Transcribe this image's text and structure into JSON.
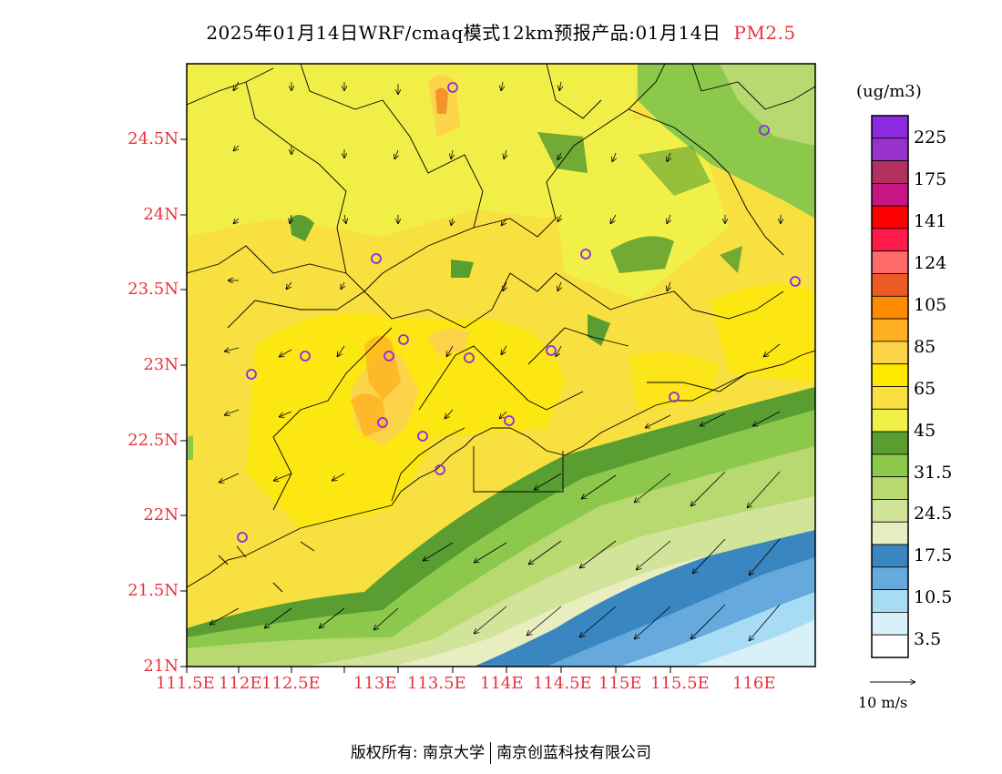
{
  "header": {
    "title": "2025年01月14日WRF/cmaq模式12km预报产品:01月14日",
    "pollutant": "PM2.5"
  },
  "axes": {
    "lat_labels": [
      "24.5N",
      "24N",
      "23.5N",
      "23N",
      "22.5N",
      "22N",
      "21.5N",
      "21N"
    ],
    "lon_labels": [
      "111.5E",
      "112E",
      "112.5E",
      "113E",
      "113.5E",
      "114E",
      "114.5E",
      "115E",
      "115.5E",
      "116E"
    ]
  },
  "colorbar": {
    "unit": "(ug/m3)",
    "labels": [
      "225",
      "175",
      "141",
      "124",
      "105",
      "85",
      "65",
      "45",
      "31.5",
      "24.5",
      "17.5",
      "10.5",
      "3.5"
    ],
    "colors": [
      "#8a2be2",
      "#9932cc",
      "#b03060",
      "#c71585",
      "#ff0000",
      "#ff1a4a",
      "#ff6a6a",
      "#ee5a24",
      "#ff8c00",
      "#ffb020",
      "#fbd44a",
      "#ffea00",
      "#f8e040",
      "#f0f048",
      "#5a9e32",
      "#8cc84b",
      "#b8d870",
      "#d2e49a",
      "#e8eec0",
      "#3a86c0",
      "#66aadd",
      "#a8dcf4",
      "#d8f0fa",
      "#ffffff"
    ]
  },
  "wind_reference": {
    "label": "10 m/s"
  },
  "footer": {
    "copyright_left": "版权所有: 南京大学",
    "copyright_right": "南京创蓝科技有限公司"
  }
}
